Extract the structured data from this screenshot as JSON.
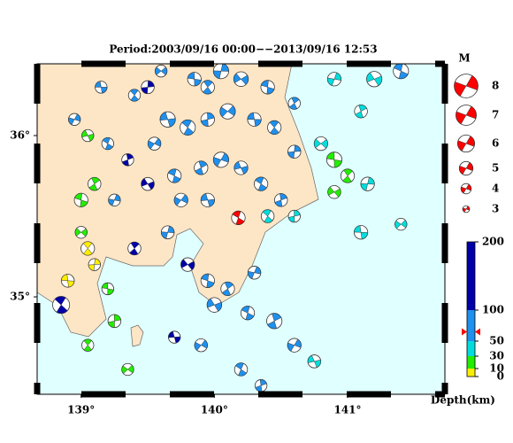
{
  "title": "Period:2003/09/16 00:00−−2013/09/16 12:53",
  "map": {
    "xlim": [
      138.67,
      141.73
    ],
    "ylim": [
      34.396,
      36.445
    ],
    "xticks": [
      {
        "value": 139,
        "label": "139°"
      },
      {
        "value": 140,
        "label": "140°"
      },
      {
        "value": 141,
        "label": "141°"
      }
    ],
    "yticks": [
      {
        "value": 35,
        "label": "35°"
      },
      {
        "value": 36,
        "label": "36°"
      }
    ]
  },
  "magnitude_legend": {
    "title": "M",
    "values": [
      8,
      7,
      6,
      5,
      4,
      3
    ],
    "color": "#ff0000"
  },
  "depth_scale": {
    "label": "Depth(km)",
    "ticks": [
      0,
      10,
      30,
      50,
      100,
      200
    ],
    "colors": [
      "#ffee00",
      "#22ee00",
      "#00dddd",
      "#1e90ee",
      "#0000aa"
    ]
  },
  "latest": {
    "event": [
      140.18,
      35.49,
      65,
      5
    ],
    "color": "#ff0000"
  },
  "events": [
    [
      139.15,
      36.3,
      60,
      4.5
    ],
    [
      139.4,
      36.25,
      70,
      4.5
    ],
    [
      139.5,
      36.3,
      120,
      4.8
    ],
    [
      139.6,
      36.4,
      60,
      4.5
    ],
    [
      139.85,
      36.35,
      80,
      5
    ],
    [
      139.95,
      36.3,
      70,
      5
    ],
    [
      140.05,
      36.4,
      90,
      5.5
    ],
    [
      140.2,
      36.35,
      60,
      5.3
    ],
    [
      140.4,
      36.3,
      70,
      5
    ],
    [
      140.6,
      36.2,
      60,
      4.5
    ],
    [
      140.9,
      36.35,
      40,
      5
    ],
    [
      141.2,
      36.35,
      40,
      5.5
    ],
    [
      141.4,
      36.4,
      50,
      5.5
    ],
    [
      141.1,
      36.15,
      40,
      4.8
    ],
    [
      138.95,
      36.1,
      70,
      4.5
    ],
    [
      139.05,
      36.0,
      10,
      4.5
    ],
    [
      139.2,
      35.95,
      60,
      4.5
    ],
    [
      139.35,
      35.85,
      120,
      4.5
    ],
    [
      139.55,
      35.95,
      70,
      4.8
    ],
    [
      139.65,
      36.1,
      80,
      5.5
    ],
    [
      139.8,
      36.05,
      70,
      5.5
    ],
    [
      139.95,
      36.1,
      60,
      5
    ],
    [
      140.1,
      36.15,
      70,
      5.5
    ],
    [
      140.3,
      36.1,
      60,
      5
    ],
    [
      140.45,
      36.05,
      70,
      5
    ],
    [
      140.6,
      35.9,
      50,
      4.8
    ],
    [
      140.8,
      35.95,
      35,
      5
    ],
    [
      140.9,
      35.85,
      25,
      5.5
    ],
    [
      141.0,
      35.75,
      25,
      5
    ],
    [
      141.15,
      35.7,
      35,
      5
    ],
    [
      140.9,
      35.65,
      25,
      4.8
    ],
    [
      139.0,
      35.6,
      25,
      5
    ],
    [
      139.1,
      35.7,
      20,
      4.8
    ],
    [
      139.25,
      35.6,
      60,
      4.5
    ],
    [
      139.5,
      35.7,
      110,
      4.8
    ],
    [
      139.7,
      35.75,
      70,
      5
    ],
    [
      139.9,
      35.8,
      70,
      5
    ],
    [
      140.05,
      35.85,
      60,
      5.5
    ],
    [
      140.2,
      35.8,
      70,
      5
    ],
    [
      140.35,
      35.7,
      60,
      5
    ],
    [
      140.5,
      35.6,
      50,
      4.8
    ],
    [
      139.75,
      35.6,
      60,
      5
    ],
    [
      139.95,
      35.6,
      80,
      5
    ],
    [
      140.4,
      35.5,
      40,
      4.8
    ],
    [
      140.6,
      35.5,
      40,
      4.5
    ],
    [
      141.4,
      35.45,
      35,
      4.5
    ],
    [
      141.1,
      35.4,
      35,
      5
    ],
    [
      139.05,
      35.3,
      5,
      5
    ],
    [
      139.1,
      35.2,
      5,
      4.5
    ],
    [
      139.0,
      35.4,
      10,
      4.5
    ],
    [
      139.2,
      35.05,
      20,
      4.5
    ],
    [
      139.4,
      35.3,
      120,
      4.8
    ],
    [
      139.65,
      35.4,
      60,
      4.8
    ],
    [
      139.8,
      35.2,
      110,
      5
    ],
    [
      139.95,
      35.1,
      60,
      5
    ],
    [
      140.1,
      35.05,
      60,
      5
    ],
    [
      140.3,
      35.15,
      60,
      4.8
    ],
    [
      140.0,
      34.95,
      60,
      5.3
    ],
    [
      140.25,
      34.9,
      60,
      5
    ],
    [
      140.45,
      34.85,
      60,
      5.5
    ],
    [
      140.6,
      34.7,
      50,
      5
    ],
    [
      140.75,
      34.6,
      40,
      4.8
    ],
    [
      140.2,
      34.55,
      60,
      4.8
    ],
    [
      140.35,
      34.45,
      60,
      4.5
    ],
    [
      139.9,
      34.7,
      70,
      4.8
    ],
    [
      139.7,
      34.75,
      110,
      4.5
    ],
    [
      138.85,
      34.95,
      130,
      6
    ],
    [
      139.25,
      34.85,
      20,
      4.8
    ],
    [
      139.35,
      34.55,
      20,
      4.5
    ],
    [
      138.9,
      35.1,
      5,
      4.8
    ],
    [
      139.05,
      34.7,
      15,
      4.5
    ]
  ]
}
